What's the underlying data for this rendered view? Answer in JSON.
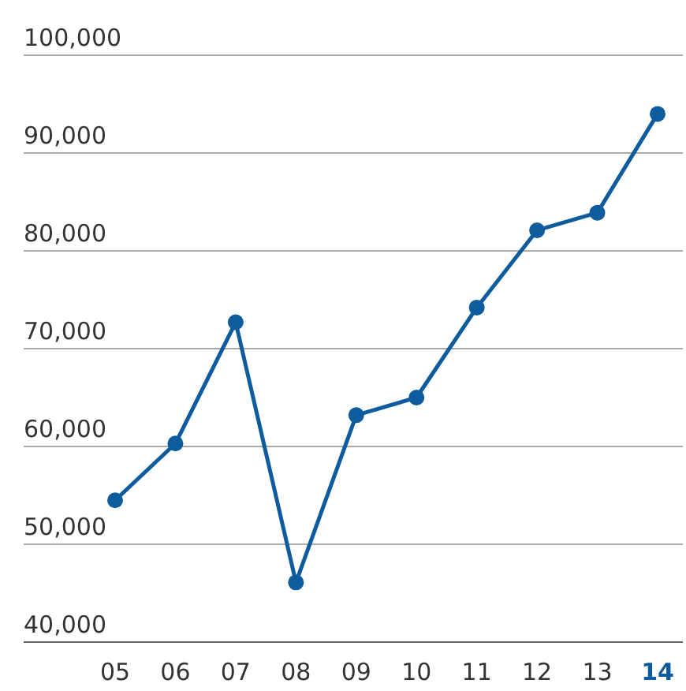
{
  "chart_data": {
    "type": "line",
    "categories": [
      "05",
      "06",
      "07",
      "08",
      "09",
      "10",
      "11",
      "12",
      "13",
      "14"
    ],
    "series": [
      {
        "color": "#0e5c9e",
        "values": [
          54500,
          60300,
          72700,
          46100,
          63200,
          65000,
          74200,
          82100,
          83900,
          94000
        ]
      }
    ],
    "ylim": [
      40000,
      100000
    ],
    "yticks": [
      {
        "value": 40000,
        "label": "40,000"
      },
      {
        "value": 50000,
        "label": "50,000"
      },
      {
        "value": 60000,
        "label": "60,000"
      },
      {
        "value": 70000,
        "label": "70,000"
      },
      {
        "value": 80000,
        "label": "80,000"
      },
      {
        "value": 90000,
        "label": "90,000"
      },
      {
        "value": 100000,
        "label": "100,000"
      }
    ],
    "grid": "y",
    "marker": "circle",
    "line_style": "solid"
  }
}
